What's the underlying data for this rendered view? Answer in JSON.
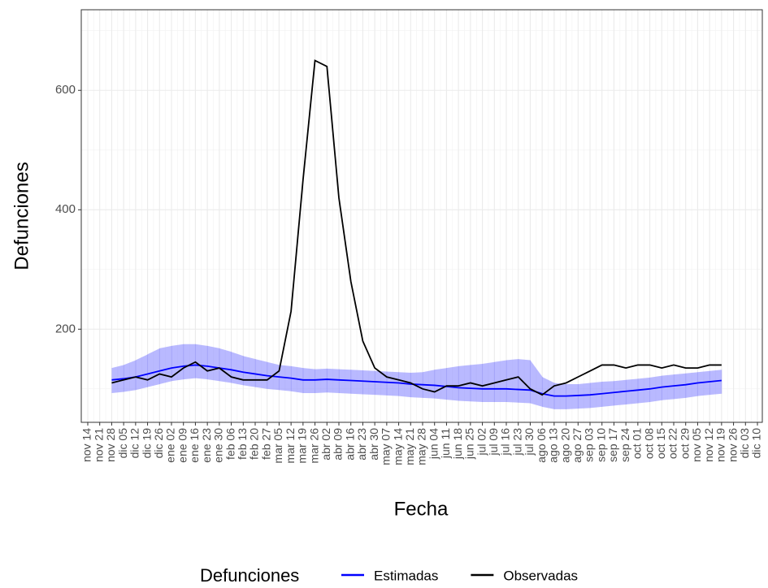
{
  "chart_data": {
    "type": "line",
    "x_label": "Fecha",
    "y_label": "Defunciones",
    "legend_title": "Defunciones",
    "categories": [
      "nov 14",
      "nov 21",
      "nov 28",
      "dic 05",
      "dic 12",
      "dic 19",
      "dic 26",
      "ene 02",
      "ene 09",
      "ene 16",
      "ene 23",
      "ene 30",
      "feb 06",
      "feb 13",
      "feb 20",
      "feb 27",
      "mar 05",
      "mar 12",
      "mar 19",
      "mar 26",
      "abr 02",
      "abr 09",
      "abr 16",
      "abr 23",
      "abr 30",
      "may 07",
      "may 14",
      "may 21",
      "may 28",
      "jun 04",
      "jun 11",
      "jun 18",
      "jun 25",
      "jul 02",
      "jul 09",
      "jul 16",
      "jul 23",
      "jul 30",
      "ago 06",
      "ago 13",
      "ago 20",
      "ago 27",
      "sep 03",
      "sep 10",
      "sep 17",
      "sep 24",
      "oct 01",
      "oct 08",
      "oct 15",
      "oct 22",
      "oct 29",
      "nov 05",
      "nov 12",
      "nov 19",
      "nov 26",
      "dic 03",
      "dic 10"
    ],
    "series": [
      {
        "name": "Estimadas",
        "color": "#0000ff",
        "values": [
          null,
          null,
          115,
          117,
          120,
          125,
          130,
          135,
          138,
          140,
          138,
          135,
          132,
          128,
          125,
          122,
          120,
          118,
          115,
          115,
          116,
          115,
          114,
          113,
          112,
          111,
          110,
          108,
          107,
          106,
          104,
          102,
          101,
          100,
          100,
          100,
          99,
          98,
          92,
          88,
          88,
          89,
          90,
          92,
          94,
          96,
          98,
          100,
          103,
          105,
          107,
          110,
          112,
          114,
          null,
          null,
          null
        ]
      },
      {
        "name": "Observadas",
        "color": "#000000",
        "values": [
          null,
          null,
          110,
          115,
          120,
          115,
          125,
          120,
          135,
          145,
          130,
          135,
          120,
          115,
          115,
          115,
          130,
          230,
          450,
          650,
          640,
          420,
          280,
          180,
          135,
          120,
          115,
          110,
          100,
          95,
          105,
          105,
          110,
          105,
          110,
          115,
          120,
          100,
          90,
          105,
          110,
          120,
          130,
          140,
          140,
          135,
          140,
          140,
          135,
          140,
          135,
          135,
          140,
          140,
          null,
          null,
          null
        ]
      }
    ],
    "band": {
      "color": "#8080ff",
      "upper": [
        null,
        null,
        135,
        140,
        148,
        158,
        168,
        172,
        175,
        175,
        172,
        168,
        162,
        155,
        150,
        145,
        140,
        138,
        135,
        133,
        134,
        133,
        132,
        131,
        130,
        129,
        128,
        127,
        128,
        132,
        135,
        138,
        140,
        142,
        145,
        148,
        150,
        148,
        120,
        110,
        108,
        108,
        110,
        112,
        113,
        115,
        117,
        119,
        122,
        124,
        126,
        128,
        130,
        132,
        null,
        null,
        null
      ],
      "lower": [
        null,
        null,
        93,
        95,
        98,
        103,
        108,
        113,
        116,
        118,
        116,
        113,
        110,
        106,
        103,
        100,
        98,
        96,
        93,
        93,
        94,
        93,
        92,
        91,
        90,
        89,
        88,
        86,
        85,
        84,
        82,
        80,
        79,
        78,
        78,
        78,
        77,
        76,
        70,
        66,
        66,
        67,
        68,
        70,
        72,
        74,
        76,
        78,
        81,
        83,
        85,
        88,
        90,
        92,
        null,
        null,
        null
      ]
    },
    "ylim": [
      44,
      735
    ],
    "yticks": [
      200,
      400,
      600
    ],
    "grid": true
  }
}
